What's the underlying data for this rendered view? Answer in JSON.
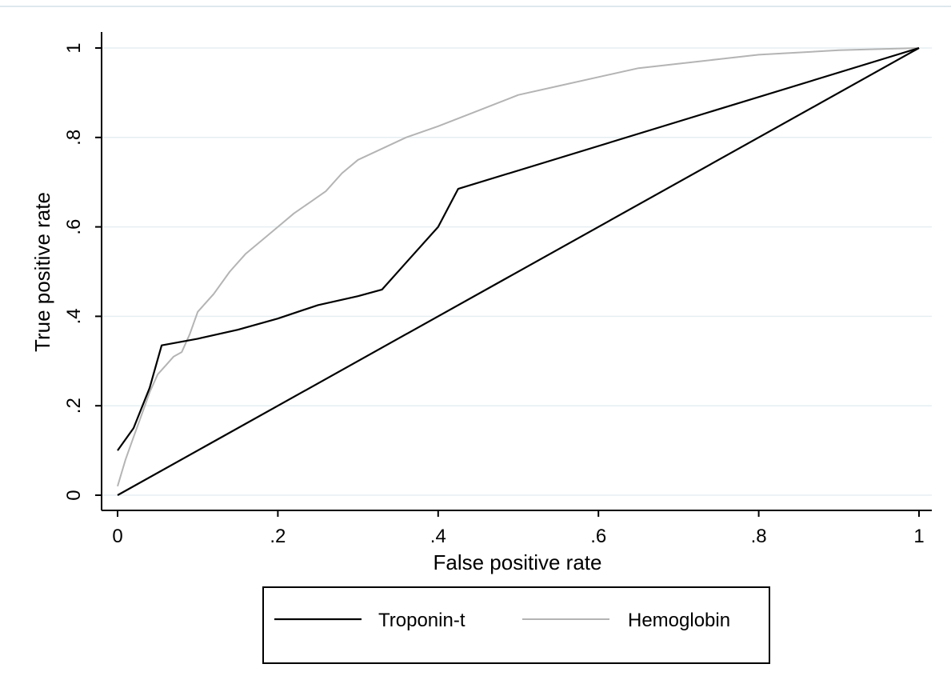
{
  "chart_data": {
    "type": "line",
    "title": "",
    "xlabel": "False positive rate",
    "ylabel": "True positive rate",
    "xlim": [
      0,
      1
    ],
    "ylim": [
      0,
      1
    ],
    "xticks": [
      0,
      0.2,
      0.4,
      0.6,
      0.8,
      1
    ],
    "xtick_labels": [
      "0",
      ".2",
      ".4",
      ".6",
      ".8",
      "1"
    ],
    "yticks": [
      0,
      0.2,
      0.4,
      0.6,
      0.8,
      1
    ],
    "ytick_labels": [
      "0",
      ".2",
      ".4",
      ".6",
      ".8",
      "1"
    ],
    "grid": "horizontal",
    "legend_position": "bottom",
    "colors": {
      "troponin": "#000000",
      "hemoglobin": "#b4b4b4",
      "reference": "#000000",
      "grid": "#e6eef2",
      "top_rule": "#dde8ee"
    },
    "series": [
      {
        "name": "Troponin-t",
        "color": "#000000",
        "x": [
          0,
          0.02,
          0.04,
          0.055,
          0.1,
          0.15,
          0.2,
          0.25,
          0.3,
          0.33,
          0.36,
          0.4,
          0.425,
          1
        ],
        "y": [
          0.1,
          0.15,
          0.24,
          0.335,
          0.35,
          0.37,
          0.395,
          0.425,
          0.445,
          0.46,
          0.52,
          0.6,
          0.685,
          1
        ]
      },
      {
        "name": "Hemoglobin",
        "color": "#b4b4b4",
        "x": [
          0,
          0.005,
          0.01,
          0.02,
          0.03,
          0.04,
          0.05,
          0.06,
          0.07,
          0.08,
          0.09,
          0.1,
          0.12,
          0.14,
          0.16,
          0.18,
          0.2,
          0.22,
          0.24,
          0.26,
          0.28,
          0.3,
          0.33,
          0.36,
          0.4,
          0.45,
          0.5,
          0.55,
          0.6,
          0.65,
          0.7,
          0.75,
          0.8,
          0.9,
          1
        ],
        "y": [
          0.02,
          0.05,
          0.08,
          0.13,
          0.18,
          0.23,
          0.27,
          0.29,
          0.31,
          0.32,
          0.36,
          0.41,
          0.45,
          0.5,
          0.54,
          0.57,
          0.6,
          0.63,
          0.655,
          0.68,
          0.72,
          0.75,
          0.775,
          0.8,
          0.825,
          0.86,
          0.895,
          0.915,
          0.935,
          0.955,
          0.965,
          0.975,
          0.985,
          0.995,
          1
        ]
      },
      {
        "name": "",
        "color": "#000000",
        "x": [
          0,
          1
        ],
        "y": [
          0,
          1
        ]
      }
    ]
  }
}
